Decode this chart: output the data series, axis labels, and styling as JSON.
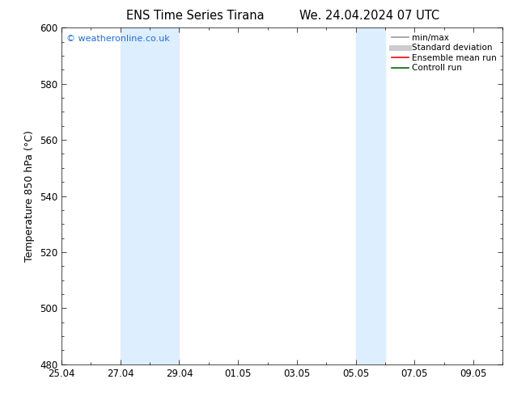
{
  "title_left": "ENS Time Series Tirana",
  "title_right": "We. 24.04.2024 07 UTC",
  "ylabel": "Temperature 850 hPa (°C)",
  "ylim": [
    480,
    600
  ],
  "yticks": [
    480,
    500,
    520,
    540,
    560,
    580,
    600
  ],
  "xtick_labels": [
    "25.04",
    "27.04",
    "29.04",
    "01.05",
    "03.05",
    "05.05",
    "07.05",
    "09.05"
  ],
  "xtick_positions": [
    0,
    2,
    4,
    6,
    8,
    10,
    12,
    14
  ],
  "xlim": [
    0,
    15
  ],
  "shaded_bands": [
    {
      "x_start": 2,
      "x_end": 4
    },
    {
      "x_start": 10,
      "x_end": 11
    }
  ],
  "shaded_color": "#ddeeff",
  "watermark_text": "© weatheronline.co.uk",
  "watermark_color": "#1a6ee8",
  "bg_color": "#ffffff",
  "legend_items": [
    {
      "label": "min/max",
      "color": "#999999",
      "lw": 1.2
    },
    {
      "label": "Standard deviation",
      "color": "#cccccc",
      "lw": 5
    },
    {
      "label": "Ensemble mean run",
      "color": "#ff0000",
      "lw": 1.2
    },
    {
      "label": "Controll run",
      "color": "#006600",
      "lw": 1.2
    }
  ],
  "tick_fontsize": 8.5,
  "label_fontsize": 9,
  "title_fontsize": 10.5
}
